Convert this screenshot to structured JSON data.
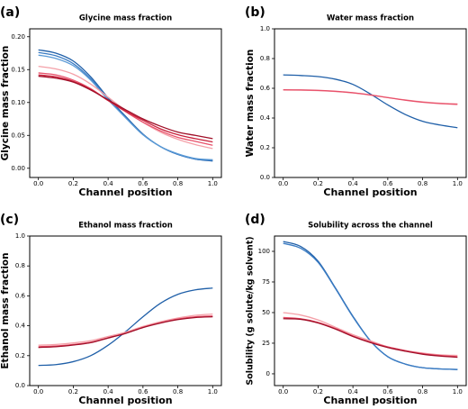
{
  "chart_data": [
    {
      "type": "line",
      "label": "(a)",
      "title": "Glycine mass fraction",
      "xlabel": "Channel position",
      "ylabel": "Glycine mass fraction",
      "x": [
        0,
        0.1,
        0.2,
        0.3,
        0.4,
        0.5,
        0.6,
        0.7,
        0.8,
        0.9,
        1.0
      ],
      "xlim": [
        -0.05,
        1.05
      ],
      "ylim": [
        -0.014,
        0.212
      ],
      "xticks": [
        {
          "value": 0,
          "label": "0.0"
        },
        {
          "value": 0.2,
          "label": "0.2"
        },
        {
          "value": 0.4,
          "label": "0.4"
        },
        {
          "value": 0.6,
          "label": "0.6"
        },
        {
          "value": 0.8,
          "label": "0.8"
        },
        {
          "value": 1.0,
          "label": "1.0"
        }
      ],
      "yticks": [
        {
          "value": 0,
          "label": "0.00"
        },
        {
          "value": 0.05,
          "label": "0.05"
        },
        {
          "value": 0.1,
          "label": "0.10"
        },
        {
          "value": 0.15,
          "label": "0.15"
        },
        {
          "value": 0.2,
          "label": "0.20"
        }
      ],
      "series": [
        {
          "color": "#1f5fa8",
          "values": [
            0.18,
            0.175,
            0.163,
            0.139,
            0.107,
            0.079,
            0.052,
            0.033,
            0.021,
            0.014,
            0.011
          ]
        },
        {
          "color": "#3a7cc4",
          "values": [
            0.176,
            0.171,
            0.159,
            0.136,
            0.105,
            0.077,
            0.051,
            0.033,
            0.021,
            0.014,
            0.012
          ]
        },
        {
          "color": "#5a9ad6",
          "values": [
            0.172,
            0.167,
            0.156,
            0.134,
            0.104,
            0.077,
            0.051,
            0.033,
            0.022,
            0.015,
            0.013
          ]
        },
        {
          "color": "#f4a0a8",
          "values": [
            0.155,
            0.151,
            0.143,
            0.128,
            0.108,
            0.088,
            0.07,
            0.055,
            0.044,
            0.036,
            0.03
          ]
        },
        {
          "color": "#e8506a",
          "values": [
            0.145,
            0.142,
            0.134,
            0.121,
            0.103,
            0.086,
            0.07,
            0.057,
            0.047,
            0.041,
            0.035
          ]
        },
        {
          "color": "#c8203a",
          "values": [
            0.142,
            0.139,
            0.132,
            0.12,
            0.103,
            0.087,
            0.073,
            0.06,
            0.051,
            0.045,
            0.04
          ]
        },
        {
          "color": "#a00f28",
          "values": [
            0.14,
            0.137,
            0.131,
            0.119,
            0.104,
            0.089,
            0.075,
            0.064,
            0.055,
            0.05,
            0.045
          ]
        }
      ]
    },
    {
      "type": "line",
      "label": "(b)",
      "title": "Water mass fraction",
      "xlabel": "Channel position",
      "ylabel": "Water mass fraction",
      "x": [
        0,
        0.1,
        0.2,
        0.3,
        0.4,
        0.5,
        0.6,
        0.7,
        0.8,
        0.9,
        1.0
      ],
      "xlim": [
        -0.05,
        1.05
      ],
      "ylim": [
        0,
        1.0
      ],
      "xticks": [
        {
          "value": 0,
          "label": "0.0"
        },
        {
          "value": 0.2,
          "label": "0.2"
        },
        {
          "value": 0.4,
          "label": "0.4"
        },
        {
          "value": 0.6,
          "label": "0.6"
        },
        {
          "value": 0.8,
          "label": "0.8"
        },
        {
          "value": 1.0,
          "label": "1.0"
        }
      ],
      "yticks": [
        {
          "value": 0,
          "label": "0.0"
        },
        {
          "value": 0.2,
          "label": "0.2"
        },
        {
          "value": 0.4,
          "label": "0.4"
        },
        {
          "value": 0.6,
          "label": "0.6"
        },
        {
          "value": 0.8,
          "label": "0.8"
        },
        {
          "value": 1.0,
          "label": "1.0"
        }
      ],
      "series": [
        {
          "color": "#1f5fa8",
          "values": [
            0.69,
            0.686,
            0.679,
            0.661,
            0.626,
            0.562,
            0.488,
            0.424,
            0.378,
            0.353,
            0.335
          ]
        },
        {
          "color": "#f4a0a8",
          "values": [
            0.588,
            0.587,
            0.584,
            0.578,
            0.569,
            0.555,
            0.538,
            0.522,
            0.509,
            0.5,
            0.495
          ]
        },
        {
          "color": "#e8506a",
          "values": [
            0.59,
            0.589,
            0.586,
            0.58,
            0.57,
            0.555,
            0.537,
            0.52,
            0.506,
            0.497,
            0.492
          ]
        }
      ]
    },
    {
      "type": "line",
      "label": "(c)",
      "title": "Ethanol mass fraction",
      "xlabel": "Channel position",
      "ylabel": "Ethanol mass fraction",
      "x": [
        0,
        0.1,
        0.2,
        0.3,
        0.4,
        0.5,
        0.6,
        0.7,
        0.8,
        0.9,
        1.0
      ],
      "xlim": [
        -0.05,
        1.05
      ],
      "ylim": [
        0,
        1.0
      ],
      "xticks": [
        {
          "value": 0,
          "label": "0.0"
        },
        {
          "value": 0.2,
          "label": "0.2"
        },
        {
          "value": 0.4,
          "label": "0.4"
        },
        {
          "value": 0.6,
          "label": "0.6"
        },
        {
          "value": 0.8,
          "label": "0.8"
        },
        {
          "value": 1.0,
          "label": "1.0"
        }
      ],
      "yticks": [
        {
          "value": 0,
          "label": "0.0"
        },
        {
          "value": 0.2,
          "label": "0.2"
        },
        {
          "value": 0.4,
          "label": "0.4"
        },
        {
          "value": 0.6,
          "label": "0.6"
        },
        {
          "value": 0.8,
          "label": "0.8"
        },
        {
          "value": 1.0,
          "label": "1.0"
        }
      ],
      "series": [
        {
          "color": "#1f5fa8",
          "values": [
            0.135,
            0.14,
            0.16,
            0.2,
            0.27,
            0.36,
            0.46,
            0.55,
            0.61,
            0.64,
            0.652
          ]
        },
        {
          "color": "#f4a0a8",
          "values": [
            0.27,
            0.275,
            0.285,
            0.3,
            0.328,
            0.357,
            0.395,
            0.427,
            0.452,
            0.47,
            0.478
          ]
        },
        {
          "color": "#e8506a",
          "values": [
            0.26,
            0.265,
            0.275,
            0.29,
            0.32,
            0.35,
            0.39,
            0.42,
            0.445,
            0.46,
            0.465
          ]
        },
        {
          "color": "#a00f28",
          "values": [
            0.255,
            0.26,
            0.271,
            0.287,
            0.318,
            0.349,
            0.388,
            0.418,
            0.441,
            0.455,
            0.46
          ]
        }
      ]
    },
    {
      "type": "line",
      "label": "(d)",
      "title": "Solubility across the channel",
      "xlabel": "Channel position",
      "ylabel": "Solubility (g solute/kg solvent)",
      "x": [
        0,
        0.1,
        0.2,
        0.3,
        0.4,
        0.5,
        0.6,
        0.7,
        0.8,
        0.9,
        1.0
      ],
      "xlim": [
        -0.05,
        1.05
      ],
      "ylim": [
        -9.6,
        112.5
      ],
      "xticks": [
        {
          "value": 0,
          "label": "0.0"
        },
        {
          "value": 0.2,
          "label": "0.2"
        },
        {
          "value": 0.4,
          "label": "0.4"
        },
        {
          "value": 0.6,
          "label": "0.6"
        },
        {
          "value": 0.8,
          "label": "0.8"
        },
        {
          "value": 1.0,
          "label": "1.0"
        }
      ],
      "yticks": [
        0,
        25,
        50,
        75,
        100
      ],
      "series": [
        {
          "color": "#1f5fa8",
          "values": [
            108,
            104,
            92,
            70,
            47,
            27,
            14,
            8,
            5,
            4,
            3.5
          ]
        },
        {
          "color": "#3a7cc4",
          "values": [
            106.5,
            102.5,
            91,
            69.5,
            46.5,
            27,
            14,
            8,
            5,
            4,
            3.6
          ]
        },
        {
          "color": "#f4a0a8",
          "values": [
            50,
            48,
            44,
            38,
            32,
            27,
            22,
            19,
            17,
            15.5,
            15
          ]
        },
        {
          "color": "#e8506a",
          "values": [
            46,
            45,
            42,
            37,
            31,
            26,
            22,
            19,
            16.5,
            15,
            14
          ]
        },
        {
          "color": "#a00f28",
          "values": [
            45,
            44.5,
            41.5,
            36.5,
            30.5,
            25.5,
            21.5,
            18.5,
            16,
            14.5,
            13.5
          ]
        }
      ]
    }
  ]
}
